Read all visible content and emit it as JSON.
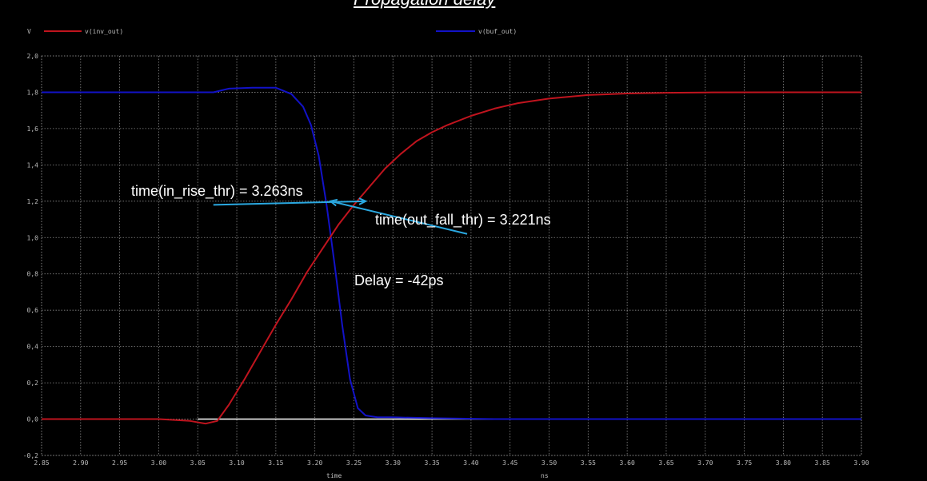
{
  "title": "Propagation delay",
  "colors": {
    "inv_out": "#c0141e",
    "buf_out": "#1212c8",
    "grid": "#8a8a8a",
    "annotation": "#2aa8e0",
    "baseline": "#ffffff"
  },
  "chart_data": {
    "type": "line",
    "ylabel": "V",
    "xlabel": "time",
    "xunit": "ns",
    "xlim": [
      2.85,
      3.9
    ],
    "ylim": [
      -0.2,
      2.0
    ],
    "grid": true,
    "legend_placement": "top",
    "x_ticks": [
      "2.85",
      "2.90",
      "2.95",
      "3.00",
      "3.05",
      "3.10",
      "3.15",
      "3.20",
      "3.25",
      "3.30",
      "3.35",
      "3.40",
      "3.45",
      "3.50",
      "3.55",
      "3.60",
      "3.65",
      "3.70",
      "3.75",
      "3.80",
      "3.85",
      "3.90"
    ],
    "y_ticks": [
      "2,0",
      "1,8",
      "1,6",
      "1,4",
      "1,2",
      "1,0",
      "0,8",
      "0,6",
      "0,4",
      "0,2",
      "0,0",
      "-0,2"
    ],
    "series": [
      {
        "name": "v(inv_out)",
        "color_key": "inv_out",
        "x": [
          2.85,
          3.0,
          3.04,
          3.06,
          3.075,
          3.09,
          3.11,
          3.13,
          3.15,
          3.17,
          3.19,
          3.21,
          3.23,
          3.25,
          3.27,
          3.29,
          3.31,
          3.33,
          3.35,
          3.37,
          3.4,
          3.43,
          3.46,
          3.5,
          3.55,
          3.6,
          3.65,
          3.7,
          3.8,
          3.9
        ],
        "y": [
          0.0,
          0.0,
          -0.01,
          -0.025,
          -0.01,
          0.08,
          0.22,
          0.37,
          0.52,
          0.66,
          0.81,
          0.94,
          1.07,
          1.18,
          1.28,
          1.38,
          1.46,
          1.53,
          1.58,
          1.62,
          1.67,
          1.71,
          1.74,
          1.765,
          1.785,
          1.793,
          1.797,
          1.799,
          1.8,
          1.8
        ]
      },
      {
        "name": "v(buf_out)",
        "color_key": "buf_out",
        "x": [
          2.85,
          3.05,
          3.07,
          3.09,
          3.12,
          3.15,
          3.17,
          3.185,
          3.195,
          3.205,
          3.215,
          3.225,
          3.235,
          3.245,
          3.255,
          3.265,
          3.28,
          3.3,
          3.35,
          3.43,
          3.5,
          3.9
        ],
        "y": [
          1.8,
          1.8,
          1.8,
          1.82,
          1.825,
          1.825,
          1.79,
          1.72,
          1.62,
          1.45,
          1.18,
          0.86,
          0.52,
          0.22,
          0.06,
          0.02,
          0.01,
          0.01,
          0.005,
          0.0,
          0.0,
          0.0
        ]
      }
    ],
    "baseline": {
      "x": [
        3.05,
        3.43
      ],
      "y": 0.0
    },
    "annotations": [
      {
        "text": "time(in_rise_thr) = 3.263ns"
      },
      {
        "text": "time(out_fall_thr) = 3.221ns"
      },
      {
        "text": "Delay = -42ps"
      }
    ],
    "arrows": [
      {
        "from": [
          3.07,
          1.18
        ],
        "to": [
          3.265,
          1.2
        ]
      },
      {
        "from": [
          3.395,
          1.02
        ],
        "to": [
          3.22,
          1.2
        ]
      }
    ]
  }
}
